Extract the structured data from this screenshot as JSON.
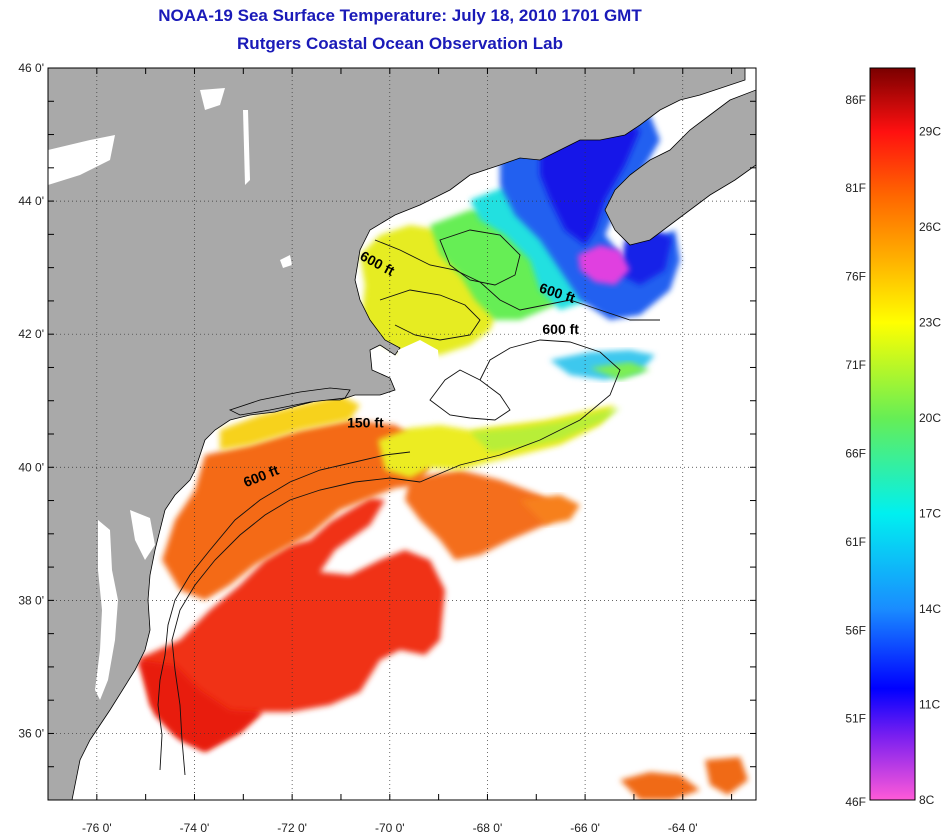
{
  "title_line1": "NOAA-19 Sea Surface Temperature:  July 18, 2010 1701 GMT",
  "title_line2": "Rutgers Coastal Ocean Observation Lab",
  "map": {
    "lon_range": [
      -77,
      -62.5
    ],
    "lat_range": [
      35,
      46
    ],
    "lat_ticks": [
      {
        "value": 46,
        "label": "46 0'"
      },
      {
        "value": 44,
        "label": "44 0'"
      },
      {
        "value": 42,
        "label": "42 0'"
      },
      {
        "value": 40,
        "label": "40 0'"
      },
      {
        "value": 38,
        "label": "38 0'"
      },
      {
        "value": 36,
        "label": "36 0'"
      }
    ],
    "lon_ticks": [
      {
        "value": -76,
        "label": "-76 0'"
      },
      {
        "value": -74,
        "label": "-74 0'"
      },
      {
        "value": -72,
        "label": "-72 0'"
      },
      {
        "value": -70,
        "label": "-70 0'"
      },
      {
        "value": -68,
        "label": "-68 0'"
      },
      {
        "value": -66,
        "label": "-66 0'"
      },
      {
        "value": -64,
        "label": "-64 0'"
      }
    ],
    "grid": true,
    "land_color": "#a9a9a9",
    "cloud_color": "#ffffff",
    "contour_labels": [
      {
        "text": "600 ft",
        "lon": -70.3,
        "lat": 43.0,
        "angle": 28
      },
      {
        "text": "600 ft",
        "lon": -66.6,
        "lat": 42.55,
        "angle": 18
      },
      {
        "text": "600 ft",
        "lon": -66.5,
        "lat": 42.0,
        "angle": 0
      },
      {
        "text": "150 ft",
        "lon": -70.5,
        "lat": 40.6,
        "angle": 0
      },
      {
        "text": "600 ft",
        "lon": -72.6,
        "lat": 39.8,
        "angle": -22
      }
    ]
  },
  "colorbar": {
    "celsius_range": [
      8,
      31
    ],
    "fahrenheit_labels": [
      {
        "value": 86,
        "label": "86F"
      },
      {
        "value": 81,
        "label": "81F"
      },
      {
        "value": 76,
        "label": "76F"
      },
      {
        "value": 71,
        "label": "71F"
      },
      {
        "value": 66,
        "label": "66F"
      },
      {
        "value": 61,
        "label": "61F"
      },
      {
        "value": 56,
        "label": "56F"
      },
      {
        "value": 51,
        "label": "51F"
      },
      {
        "value": 46,
        "label": "46F"
      }
    ],
    "celsius_labels": [
      {
        "value": 29,
        "label": "29C"
      },
      {
        "value": 26,
        "label": "26C"
      },
      {
        "value": 23,
        "label": "23C"
      },
      {
        "value": 20,
        "label": "20C"
      },
      {
        "value": 17,
        "label": "17C"
      },
      {
        "value": 14,
        "label": "14C"
      },
      {
        "value": 11,
        "label": "11C"
      },
      {
        "value": 8,
        "label": "8C"
      }
    ],
    "stops": [
      {
        "c": 8,
        "color": "#ff5ad8"
      },
      {
        "c": 10,
        "color": "#7a1ff0"
      },
      {
        "c": 11.5,
        "color": "#0000ff"
      },
      {
        "c": 14,
        "color": "#1a8cff"
      },
      {
        "c": 17,
        "color": "#00f0f0"
      },
      {
        "c": 20,
        "color": "#66ee55"
      },
      {
        "c": 23,
        "color": "#ffff00"
      },
      {
        "c": 25,
        "color": "#ffb000"
      },
      {
        "c": 27,
        "color": "#ff6600"
      },
      {
        "c": 29,
        "color": "#ff1010"
      },
      {
        "c": 31,
        "color": "#7a0000"
      }
    ]
  }
}
